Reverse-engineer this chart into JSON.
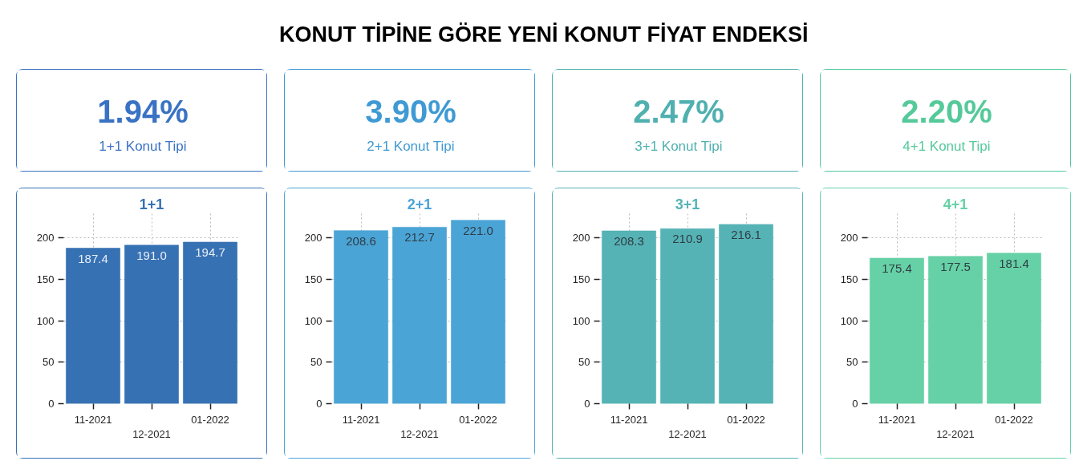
{
  "chart_data": [
    {
      "type": "other",
      "title": "KONUT TİPİNE GÖRE YENİ KONUT FİYAT ENDEKSİ"
    },
    {
      "type": "other",
      "title": "1.94%",
      "subtitle": "1+1 Konut Tipi",
      "color": "#3a72c4"
    },
    {
      "type": "other",
      "title": "3.90%",
      "subtitle": "2+1 Konut Tipi",
      "color": "#3f9ad4"
    },
    {
      "type": "other",
      "title": "2.47%",
      "subtitle": "3+1 Konut Tipi",
      "color": "#50b0b0"
    },
    {
      "type": "other",
      "title": "2.20%",
      "subtitle": "4+1 Konut Tipi",
      "color": "#55c99a"
    },
    {
      "type": "bar",
      "title": "1+1",
      "categories": [
        "11-2021",
        "12-2021",
        "01-2022"
      ],
      "values": [
        187.4,
        191.0,
        194.7
      ],
      "value_labels": [
        "187.4",
        "191.0",
        "194.7"
      ],
      "color": "#3671b3",
      "ylim": [
        0,
        230
      ],
      "yticks": [
        0,
        50,
        100,
        150,
        200
      ],
      "grid": true
    },
    {
      "type": "bar",
      "title": "2+1",
      "categories": [
        "11-2021",
        "12-2021",
        "01-2022"
      ],
      "values": [
        208.6,
        212.7,
        221.0
      ],
      "value_labels": [
        "208.6",
        "212.7",
        "221.0"
      ],
      "color": "#4ba4d6",
      "ylim": [
        0,
        230
      ],
      "yticks": [
        0,
        50,
        100,
        150,
        200
      ],
      "grid": true
    },
    {
      "type": "bar",
      "title": "3+1",
      "categories": [
        "11-2021",
        "12-2021",
        "01-2022"
      ],
      "values": [
        208.3,
        210.9,
        216.1
      ],
      "value_labels": [
        "208.3",
        "210.9",
        "216.1"
      ],
      "color": "#56b3b5",
      "ylim": [
        0,
        230
      ],
      "yticks": [
        0,
        50,
        100,
        150,
        200
      ],
      "grid": true
    },
    {
      "type": "bar",
      "title": "4+1",
      "categories": [
        "11-2021",
        "12-2021",
        "01-2022"
      ],
      "values": [
        175.4,
        177.5,
        181.4
      ],
      "value_labels": [
        "175.4",
        "177.5",
        "181.4"
      ],
      "color": "#66d1a6",
      "ylim": [
        0,
        230
      ],
      "yticks": [
        0,
        50,
        100,
        150,
        200
      ],
      "grid": true
    }
  ]
}
